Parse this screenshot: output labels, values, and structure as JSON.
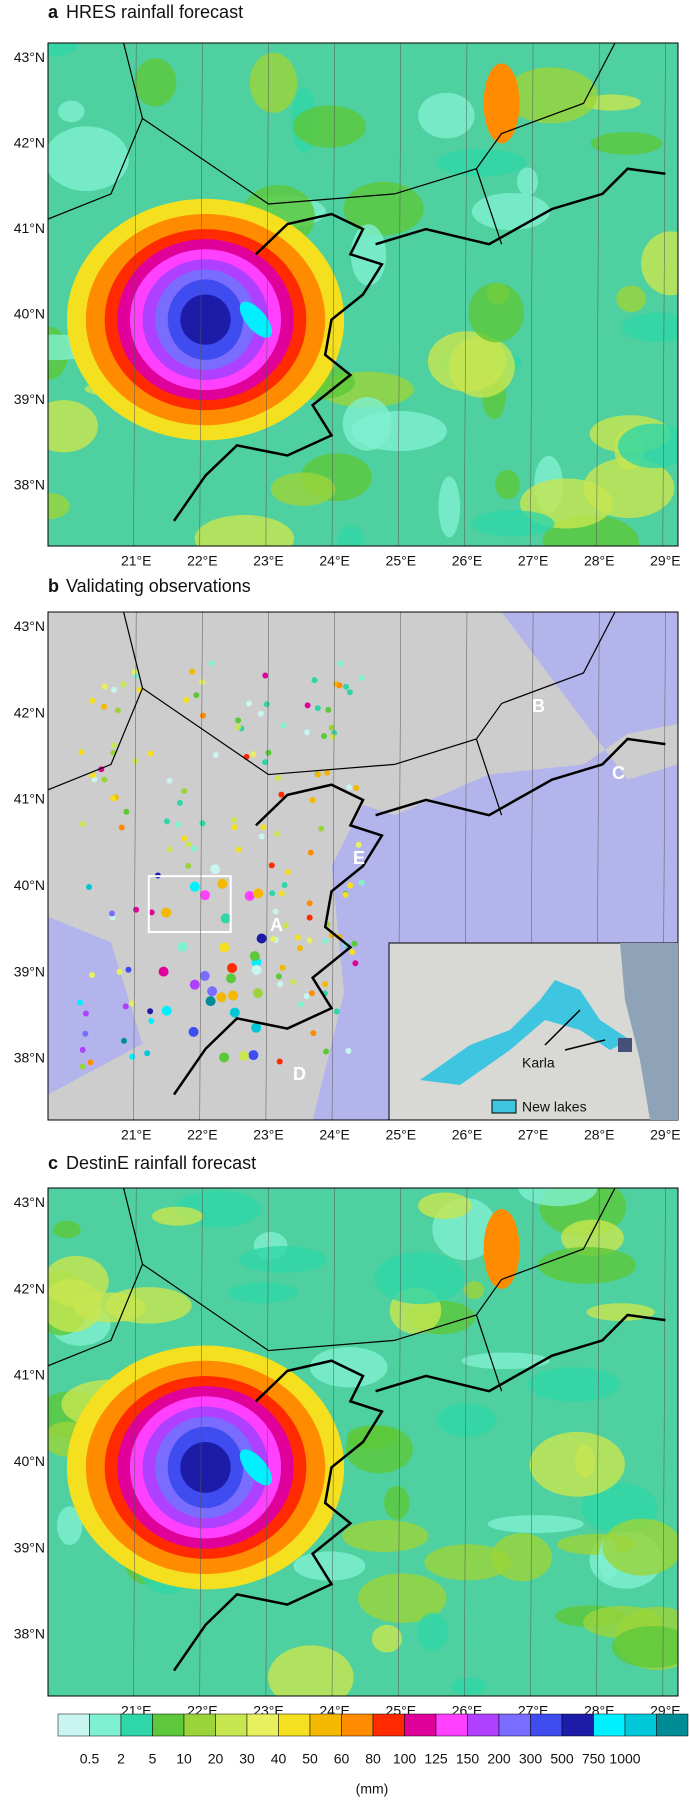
{
  "panels": [
    {
      "letter": "a",
      "title": "HRES rainfall forecast"
    },
    {
      "letter": "b",
      "title": "Validating observations"
    },
    {
      "letter": "c",
      "title": "DestinE rainfall forecast"
    }
  ],
  "lat_labels": [
    "43°N",
    "42°N",
    "41°N",
    "40°N",
    "39°N",
    "38°N"
  ],
  "lon_labels": [
    "21°E",
    "22°E",
    "23°E",
    "24°E",
    "25°E",
    "26°E",
    "27°E",
    "28°E",
    "29°E"
  ],
  "annotations": [
    "A",
    "B",
    "C",
    "D",
    "E"
  ],
  "inset": {
    "label": "Karla",
    "legend": "New lakes"
  },
  "colorbar": {
    "labels": [
      "0.5",
      "2",
      "5",
      "10",
      "20",
      "30",
      "40",
      "50",
      "60",
      "80",
      "100",
      "125",
      "150",
      "200",
      "300",
      "500",
      "750",
      "1000"
    ],
    "colors": [
      "#c8f5f0",
      "#7ff0d0",
      "#2fd6a8",
      "#5cc83a",
      "#9bd43a",
      "#c8e650",
      "#e8f060",
      "#f5e020",
      "#f5b800",
      "#ff8c00",
      "#ff2a00",
      "#e0009a",
      "#ff40ff",
      "#b040ff",
      "#7a6cff",
      "#3f4cf0",
      "#1c1ca8",
      "#00f0ff",
      "#00c8d8",
      "#008c96"
    ],
    "unit": "(mm)"
  }
}
